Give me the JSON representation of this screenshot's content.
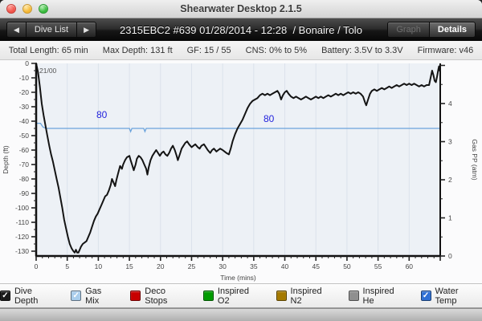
{
  "window": {
    "title": "Shearwater Desktop 2.1.5"
  },
  "toolbar": {
    "prev_label": "◀",
    "dive_list_label": "Dive List",
    "next_label": "▶",
    "dive_title": "2315EBC2 #639 01/28/2014 - 12:28  / Bonaire / Tolo",
    "graph_label": "Graph",
    "details_label": "Details"
  },
  "summary": {
    "items": [
      "Total Length: 65 min",
      "Max Depth: 131 ft",
      "GF: 15 / 55",
      "CNS: 0% to 5%",
      "Battery: 3.5V to 3.3V",
      "Firmware: v46"
    ]
  },
  "chart_data": {
    "type": "line",
    "xlabel": "Time (mins)",
    "ylabel_left": "Depth (ft)",
    "ylabel_right": "Gas PP (atm)",
    "xlim": [
      0,
      65
    ],
    "ylim_left": [
      0,
      -133
    ],
    "ylim_right": [
      0,
      5
    ],
    "x_ticks": [
      0,
      5,
      10,
      15,
      20,
      25,
      30,
      35,
      40,
      45,
      50,
      55,
      60
    ],
    "depth_ticks": [
      0,
      -10,
      -20,
      -30,
      -40,
      -50,
      -60,
      -70,
      -80,
      -90,
      -100,
      -110,
      -120,
      -130
    ],
    "gas_ticks": [
      0,
      1,
      2,
      3,
      4
    ],
    "grid": "vertical-only",
    "plot_bg": "#edf1f6",
    "grid_color": "#dbe2eb",
    "annotations": {
      "gas_mix_label": "21/00",
      "water_temp_label_1": "80",
      "water_temp_label_2": "80",
      "label_color": "#2323dd"
    },
    "series": [
      {
        "name": "Dive Depth",
        "color": "#141414",
        "points": [
          [
            0,
            0
          ],
          [
            0.3,
            -6
          ],
          [
            0.6,
            -16
          ],
          [
            0.9,
            -28
          ],
          [
            1.2,
            -36
          ],
          [
            1.5,
            -43
          ],
          [
            1.8,
            -50
          ],
          [
            2.1,
            -57
          ],
          [
            2.4,
            -63
          ],
          [
            2.7,
            -68
          ],
          [
            3,
            -74
          ],
          [
            3.3,
            -80
          ],
          [
            3.6,
            -86
          ],
          [
            3.9,
            -93
          ],
          [
            4.2,
            -100
          ],
          [
            4.5,
            -108
          ],
          [
            4.8,
            -114
          ],
          [
            5.1,
            -120
          ],
          [
            5.4,
            -125
          ],
          [
            5.7,
            -128
          ],
          [
            6,
            -130
          ],
          [
            6.2,
            -131
          ],
          [
            6.4,
            -129
          ],
          [
            6.6,
            -131
          ],
          [
            6.8,
            -131
          ],
          [
            7,
            -129
          ],
          [
            7.2,
            -127
          ],
          [
            7.5,
            -125
          ],
          [
            7.8,
            -124
          ],
          [
            8.1,
            -123
          ],
          [
            8.4,
            -120
          ],
          [
            8.7,
            -117
          ],
          [
            9,
            -113
          ],
          [
            9.3,
            -109
          ],
          [
            9.6,
            -106
          ],
          [
            9.9,
            -104
          ],
          [
            10.2,
            -101
          ],
          [
            10.5,
            -98
          ],
          [
            10.8,
            -95
          ],
          [
            11.1,
            -92
          ],
          [
            11.4,
            -91
          ],
          [
            11.7,
            -88
          ],
          [
            12,
            -84
          ],
          [
            12.2,
            -80
          ],
          [
            12.4,
            -82
          ],
          [
            12.7,
            -85
          ],
          [
            12.9,
            -81
          ],
          [
            13.2,
            -76
          ],
          [
            13.5,
            -71
          ],
          [
            13.8,
            -73
          ],
          [
            14,
            -70
          ],
          [
            14.3,
            -67
          ],
          [
            14.6,
            -65
          ],
          [
            15,
            -64
          ],
          [
            15.2,
            -67
          ],
          [
            15.5,
            -71
          ],
          [
            15.7,
            -74
          ],
          [
            16,
            -70
          ],
          [
            16.2,
            -66
          ],
          [
            16.5,
            -64
          ],
          [
            16.8,
            -65
          ],
          [
            17.1,
            -67
          ],
          [
            17.4,
            -70
          ],
          [
            17.7,
            -73
          ],
          [
            17.9,
            -77
          ],
          [
            18.1,
            -72
          ],
          [
            18.4,
            -67
          ],
          [
            18.7,
            -64
          ],
          [
            19,
            -62
          ],
          [
            19.3,
            -60
          ],
          [
            19.6,
            -62
          ],
          [
            19.9,
            -64
          ],
          [
            20.2,
            -62
          ],
          [
            20.5,
            -61
          ],
          [
            20.8,
            -63
          ],
          [
            21.1,
            -64
          ],
          [
            21.4,
            -62
          ],
          [
            21.7,
            -59
          ],
          [
            22,
            -57
          ],
          [
            22.3,
            -60
          ],
          [
            22.6,
            -64
          ],
          [
            22.8,
            -67
          ],
          [
            23.1,
            -63
          ],
          [
            23.4,
            -59
          ],
          [
            23.7,
            -57
          ],
          [
            24,
            -55
          ],
          [
            24.3,
            -54
          ],
          [
            24.6,
            -56
          ],
          [
            25,
            -58
          ],
          [
            25.3,
            -57
          ],
          [
            25.6,
            -56
          ],
          [
            26,
            -58
          ],
          [
            26.3,
            -59
          ],
          [
            26.6,
            -57
          ],
          [
            27,
            -56
          ],
          [
            27.3,
            -58
          ],
          [
            27.6,
            -60
          ],
          [
            28,
            -62
          ],
          [
            28.3,
            -60
          ],
          [
            28.6,
            -59
          ],
          [
            29,
            -61
          ],
          [
            29.3,
            -60
          ],
          [
            29.6,
            -59
          ],
          [
            30,
            -60
          ],
          [
            30.3,
            -61
          ],
          [
            30.6,
            -62
          ],
          [
            31,
            -63
          ],
          [
            31.3,
            -59
          ],
          [
            31.6,
            -54
          ],
          [
            32,
            -49
          ],
          [
            32.4,
            -45
          ],
          [
            32.8,
            -42
          ],
          [
            33.2,
            -39
          ],
          [
            33.6,
            -35
          ],
          [
            34,
            -31
          ],
          [
            34.4,
            -28
          ],
          [
            34.8,
            -26
          ],
          [
            35.2,
            -25
          ],
          [
            35.6,
            -24
          ],
          [
            36,
            -22
          ],
          [
            36.4,
            -21
          ],
          [
            36.8,
            -22
          ],
          [
            37.2,
            -21
          ],
          [
            37.6,
            -22
          ],
          [
            38,
            -21
          ],
          [
            38.4,
            -20
          ],
          [
            38.8,
            -19
          ],
          [
            39.1,
            -21
          ],
          [
            39.4,
            -25
          ],
          [
            39.7,
            -22
          ],
          [
            40,
            -20
          ],
          [
            40.3,
            -19
          ],
          [
            40.6,
            -21
          ],
          [
            41,
            -23
          ],
          [
            41.4,
            -24
          ],
          [
            41.8,
            -23
          ],
          [
            42.2,
            -24
          ],
          [
            42.6,
            -25
          ],
          [
            43,
            -24
          ],
          [
            43.4,
            -23
          ],
          [
            43.8,
            -24
          ],
          [
            44.2,
            -25
          ],
          [
            44.6,
            -24
          ],
          [
            45,
            -23
          ],
          [
            45.4,
            -24
          ],
          [
            45.8,
            -23
          ],
          [
            46.2,
            -24
          ],
          [
            46.6,
            -23
          ],
          [
            47,
            -22
          ],
          [
            47.4,
            -23
          ],
          [
            47.8,
            -22
          ],
          [
            48.2,
            -21
          ],
          [
            48.6,
            -22
          ],
          [
            49,
            -21
          ],
          [
            49.4,
            -22
          ],
          [
            49.8,
            -21
          ],
          [
            50.2,
            -20
          ],
          [
            50.6,
            -21
          ],
          [
            51,
            -20
          ],
          [
            51.4,
            -21
          ],
          [
            51.8,
            -20
          ],
          [
            52.2,
            -21
          ],
          [
            52.6,
            -23
          ],
          [
            52.9,
            -27
          ],
          [
            53.1,
            -29
          ],
          [
            53.4,
            -25
          ],
          [
            53.7,
            -21
          ],
          [
            54,
            -19
          ],
          [
            54.4,
            -18
          ],
          [
            54.8,
            -19
          ],
          [
            55.2,
            -18
          ],
          [
            55.6,
            -17
          ],
          [
            56,
            -18
          ],
          [
            56.4,
            -17
          ],
          [
            56.8,
            -16
          ],
          [
            57.2,
            -17
          ],
          [
            57.6,
            -16
          ],
          [
            58,
            -15
          ],
          [
            58.4,
            -16
          ],
          [
            58.8,
            -15
          ],
          [
            59.2,
            -14
          ],
          [
            59.6,
            -15
          ],
          [
            60,
            -14
          ],
          [
            60.4,
            -15
          ],
          [
            60.8,
            -14
          ],
          [
            61.2,
            -15
          ],
          [
            61.6,
            -16
          ],
          [
            62,
            -15
          ],
          [
            62.4,
            -16
          ],
          [
            62.8,
            -15
          ],
          [
            63.2,
            -15
          ],
          [
            63.5,
            -9
          ],
          [
            63.7,
            -5
          ],
          [
            63.9,
            -8
          ],
          [
            64.1,
            -12
          ],
          [
            64.3,
            -13
          ],
          [
            64.5,
            -9
          ],
          [
            64.7,
            -4
          ],
          [
            64.8,
            -2
          ],
          [
            64.9,
            -5
          ],
          [
            65,
            -2
          ]
        ]
      },
      {
        "name": "Water Temp",
        "color": "#6ba3dc",
        "unit": "F",
        "points_f": [
          [
            0,
            80.8
          ],
          [
            0.7,
            80.8
          ],
          [
            1.1,
            80.2
          ],
          [
            1.6,
            80
          ],
          [
            15,
            80
          ],
          [
            15.2,
            79.5
          ],
          [
            15.4,
            80
          ],
          [
            17.3,
            80
          ],
          [
            17.5,
            79.5
          ],
          [
            17.7,
            80
          ],
          [
            65,
            80
          ]
        ]
      }
    ]
  },
  "legend": {
    "items": [
      {
        "label": "Dive Depth",
        "color": "#1a1a1a",
        "checked": true
      },
      {
        "label": "Gas Mix",
        "color": "#a9cdec",
        "checked": true
      },
      {
        "label": "Deco Stops",
        "color": "#c80000",
        "checked": false
      },
      {
        "label": "Inspired O2",
        "color": "#009b00",
        "checked": false
      },
      {
        "label": "Inspired N2",
        "color": "#a57a00",
        "checked": false
      },
      {
        "label": "Inspired He",
        "color": "#8f8f8f",
        "checked": false
      },
      {
        "label": "Water Temp",
        "color": "#2e6fd4",
        "checked": true
      }
    ]
  }
}
